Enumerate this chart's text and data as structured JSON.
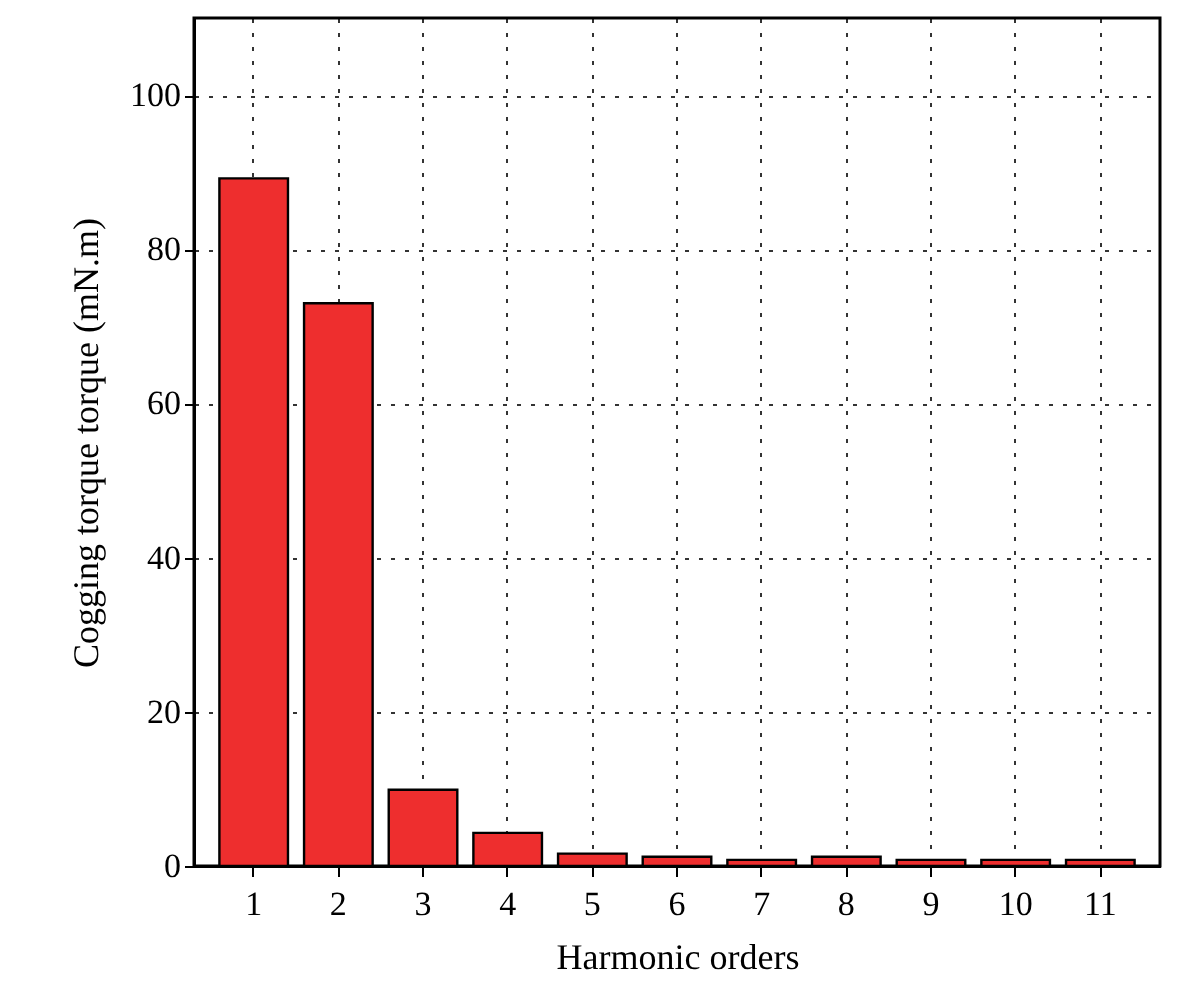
{
  "chart_data": {
    "type": "bar",
    "xlabel": "Harmonic orders",
    "ylabel": "Cogging torque torque (mN.m)",
    "categories": [
      "1",
      "2",
      "3",
      "4",
      "5",
      "6",
      "7",
      "8",
      "9",
      "10",
      "11"
    ],
    "values": [
      89.2,
      73,
      9.9,
      4.3,
      1.6,
      1.2,
      0.8,
      1.2,
      0.8,
      0.8,
      0.8
    ],
    "color": "#ee2e2e",
    "ylim": [
      0,
      110
    ],
    "yticks": [
      0,
      20,
      40,
      60,
      80,
      100
    ],
    "grid": true
  }
}
